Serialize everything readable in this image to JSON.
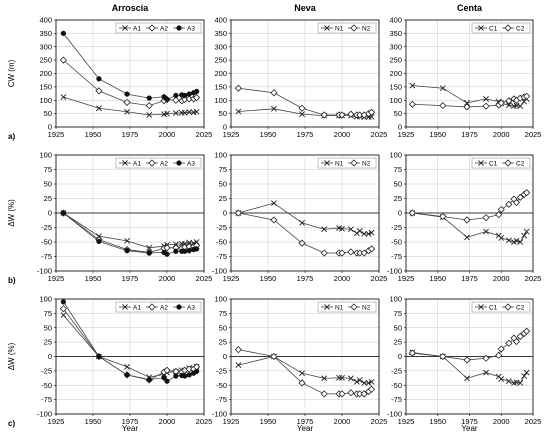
{
  "chart_data": {
    "type": "line",
    "columns": [
      "Arroscia",
      "Neva",
      "Centa"
    ],
    "rows": [
      {
        "label": "a)",
        "ylabel": "CW (m)",
        "ylim": [
          0,
          400
        ],
        "yticks": [
          0,
          50,
          100,
          150,
          200,
          250,
          300,
          350,
          400
        ],
        "zero_line": false
      },
      {
        "label": "b)",
        "ylabel": "ΔW (%)",
        "ylim": [
          -100,
          100
        ],
        "yticks": [
          -100,
          -75,
          -50,
          -25,
          0,
          25,
          50,
          75,
          100
        ],
        "zero_line": true
      },
      {
        "label": "c)",
        "ylabel": "ΔW (%)",
        "ylim": [
          -100,
          100
        ],
        "yticks": [
          -100,
          -75,
          -50,
          -25,
          0,
          25,
          50,
          75,
          100
        ],
        "zero_line": true
      }
    ],
    "xlabel": "Year",
    "xlim": [
      1925,
      2025
    ],
    "xticks": [
      1925,
      1950,
      1975,
      2000,
      2025
    ],
    "grid": true,
    "legend_position": "top-right",
    "panels": [
      {
        "row": 0,
        "col": 0,
        "series": [
          {
            "name": "A1",
            "marker": "x",
            "x": [
              1930,
              1954,
              1973,
              1988,
              1998,
              2000,
              2006,
              2010,
              2012,
              2015,
              2018,
              2020
            ],
            "y": [
              112,
              70,
              57,
              45,
              48,
              50,
              52,
              53,
              53,
              56,
              55,
              57
            ]
          },
          {
            "name": "A2",
            "marker": "open-diamond",
            "x": [
              1930,
              1954,
              1973,
              1988,
              1998,
              2000,
              2006,
              2010,
              2012,
              2015,
              2018,
              2020
            ],
            "y": [
              250,
              135,
              92,
              80,
              98,
              103,
              100,
              98,
              103,
              105,
              105,
              110
            ]
          },
          {
            "name": "A3",
            "marker": "filled-circle",
            "x": [
              1930,
              1954,
              1973,
              1988,
              1998,
              2000,
              2006,
              2010,
              2012,
              2015,
              2018,
              2020
            ],
            "y": [
              350,
              180,
              123,
              108,
              113,
              103,
              118,
              120,
              118,
              123,
              128,
              133
            ]
          }
        ]
      },
      {
        "row": 0,
        "col": 1,
        "series": [
          {
            "name": "N1",
            "marker": "x",
            "x": [
              1930,
              1954,
              1973,
              1988,
              1998,
              2000,
              2006,
              2010,
              2012,
              2015,
              2018,
              2020
            ],
            "y": [
              58,
              68,
              48,
              42,
              43,
              43,
              42,
              38,
              40,
              37,
              37,
              38
            ]
          },
          {
            "name": "N2",
            "marker": "open-diamond",
            "x": [
              1930,
              1954,
              1973,
              1988,
              1998,
              2000,
              2006,
              2010,
              2012,
              2015,
              2018,
              2020
            ],
            "y": [
              145,
              128,
              70,
              45,
              45,
              45,
              48,
              45,
              45,
              45,
              50,
              55
            ]
          }
        ]
      },
      {
        "row": 0,
        "col": 2,
        "series": [
          {
            "name": "C1",
            "marker": "x",
            "x": [
              1930,
              1954,
              1973,
              1988,
              1998,
              2000,
              2006,
              2010,
              2012,
              2015,
              2018,
              2020
            ],
            "y": [
              155,
              145,
              90,
              105,
              95,
              88,
              82,
              78,
              80,
              78,
              95,
              105
            ]
          },
          {
            "name": "C2",
            "marker": "open-diamond",
            "x": [
              1930,
              1954,
              1973,
              1988,
              1998,
              2000,
              2006,
              2010,
              2012,
              2015,
              2018,
              2020
            ],
            "y": [
              85,
              80,
              75,
              78,
              82,
              90,
              98,
              105,
              100,
              108,
              112,
              115
            ]
          }
        ]
      },
      {
        "row": 1,
        "col": 0,
        "series": [
          {
            "name": "A1",
            "marker": "x",
            "x": [
              1930,
              1954,
              1973,
              1988,
              1998,
              2000,
              2006,
              2010,
              2012,
              2015,
              2018,
              2020
            ],
            "y": [
              0,
              -40,
              -48,
              -60,
              -57,
              -55,
              -54,
              -53,
              -53,
              -51,
              -52,
              -50
            ]
          },
          {
            "name": "A2",
            "marker": "open-diamond",
            "x": [
              1930,
              1954,
              1973,
              1988,
              1998,
              2000,
              2006,
              2010,
              2012,
              2015,
              2018,
              2020
            ],
            "y": [
              0,
              -46,
              -63,
              -68,
              -61,
              -60,
              -60,
              -61,
              -59,
              -58,
              -58,
              -56
            ]
          },
          {
            "name": "A3",
            "marker": "filled-circle",
            "x": [
              1930,
              1954,
              1973,
              1988,
              1998,
              2000,
              2006,
              2010,
              2012,
              2015,
              2018,
              2020
            ],
            "y": [
              0,
              -49,
              -65,
              -69,
              -68,
              -71,
              -66,
              -66,
              -66,
              -65,
              -63,
              -62
            ]
          }
        ]
      },
      {
        "row": 1,
        "col": 1,
        "series": [
          {
            "name": "N1",
            "marker": "x",
            "x": [
              1930,
              1954,
              1973,
              1988,
              1998,
              2000,
              2006,
              2010,
              2012,
              2015,
              2018,
              2020
            ],
            "y": [
              0,
              17,
              -17,
              -28,
              -26,
              -27,
              -28,
              -35,
              -31,
              -36,
              -36,
              -34
            ]
          },
          {
            "name": "N2",
            "marker": "open-diamond",
            "x": [
              1930,
              1954,
              1973,
              1988,
              1998,
              2000,
              2006,
              2010,
              2012,
              2015,
              2018,
              2020
            ],
            "y": [
              0,
              -12,
              -52,
              -69,
              -69,
              -69,
              -67,
              -69,
              -69,
              -69,
              -65,
              -62
            ]
          }
        ]
      },
      {
        "row": 1,
        "col": 2,
        "series": [
          {
            "name": "C1",
            "marker": "x",
            "x": [
              1930,
              1954,
              1973,
              1988,
              1998,
              2000,
              2006,
              2010,
              2012,
              2015,
              2018,
              2020
            ],
            "y": [
              0,
              -7,
              -42,
              -32,
              -39,
              -43,
              -47,
              -50,
              -48,
              -50,
              -39,
              -32
            ]
          },
          {
            "name": "C2",
            "marker": "open-diamond",
            "x": [
              1930,
              1954,
              1973,
              1988,
              1998,
              2000,
              2006,
              2010,
              2012,
              2015,
              2018,
              2020
            ],
            "y": [
              0,
              -6,
              -12,
              -8,
              -3,
              6,
              15,
              24,
              18,
              27,
              32,
              35
            ]
          }
        ]
      },
      {
        "row": 2,
        "col": 0,
        "series": [
          {
            "name": "A1",
            "marker": "x",
            "x": [
              1930,
              1954,
              1973,
              1988,
              1998,
              2000,
              2006,
              2010,
              2012,
              2015,
              2018,
              2020
            ],
            "y": [
              72,
              0,
              -18,
              -36,
              -31,
              -28,
              -26,
              -24,
              -24,
              -20,
              -21,
              -18
            ]
          },
          {
            "name": "A2",
            "marker": "open-diamond",
            "x": [
              1930,
              1954,
              1973,
              1988,
              1998,
              2000,
              2006,
              2010,
              2012,
              2015,
              2018,
              2020
            ],
            "y": [
              83,
              0,
              -32,
              -41,
              -27,
              -24,
              -26,
              -27,
              -24,
              -22,
              -22,
              -18
            ]
          },
          {
            "name": "A3",
            "marker": "filled-circle",
            "x": [
              1930,
              1954,
              1973,
              1988,
              1998,
              2000,
              2006,
              2010,
              2012,
              2015,
              2018,
              2020
            ],
            "y": [
              95,
              0,
              -32,
              -40,
              -37,
              -43,
              -34,
              -33,
              -34,
              -32,
              -29,
              -26
            ]
          }
        ]
      },
      {
        "row": 2,
        "col": 1,
        "series": [
          {
            "name": "N1",
            "marker": "x",
            "x": [
              1930,
              1954,
              1973,
              1988,
              1998,
              2000,
              2006,
              2010,
              2012,
              2015,
              2018,
              2020
            ],
            "y": [
              -15,
              0,
              -29,
              -38,
              -37,
              -37,
              -38,
              -44,
              -41,
              -46,
              -46,
              -44
            ]
          },
          {
            "name": "N2",
            "marker": "open-diamond",
            "x": [
              1930,
              1954,
              1973,
              1988,
              1998,
              2000,
              2006,
              2010,
              2012,
              2015,
              2018,
              2020
            ],
            "y": [
              12,
              0,
              -46,
              -65,
              -65,
              -65,
              -63,
              -65,
              -65,
              -65,
              -61,
              -57
            ]
          }
        ]
      },
      {
        "row": 2,
        "col": 2,
        "series": [
          {
            "name": "C1",
            "marker": "x",
            "x": [
              1930,
              1954,
              1973,
              1988,
              1998,
              2000,
              2006,
              2010,
              2012,
              2015,
              2018,
              2020
            ],
            "y": [
              7,
              0,
              -38,
              -28,
              -35,
              -39,
              -43,
              -46,
              -45,
              -46,
              -34,
              -28
            ]
          },
          {
            "name": "C2",
            "marker": "open-diamond",
            "x": [
              1930,
              1954,
              1973,
              1988,
              1998,
              2000,
              2006,
              2010,
              2012,
              2015,
              2018,
              2020
            ],
            "y": [
              6,
              0,
              -6,
              -3,
              2,
              13,
              23,
              32,
              26,
              35,
              40,
              44
            ]
          }
        ]
      }
    ]
  }
}
